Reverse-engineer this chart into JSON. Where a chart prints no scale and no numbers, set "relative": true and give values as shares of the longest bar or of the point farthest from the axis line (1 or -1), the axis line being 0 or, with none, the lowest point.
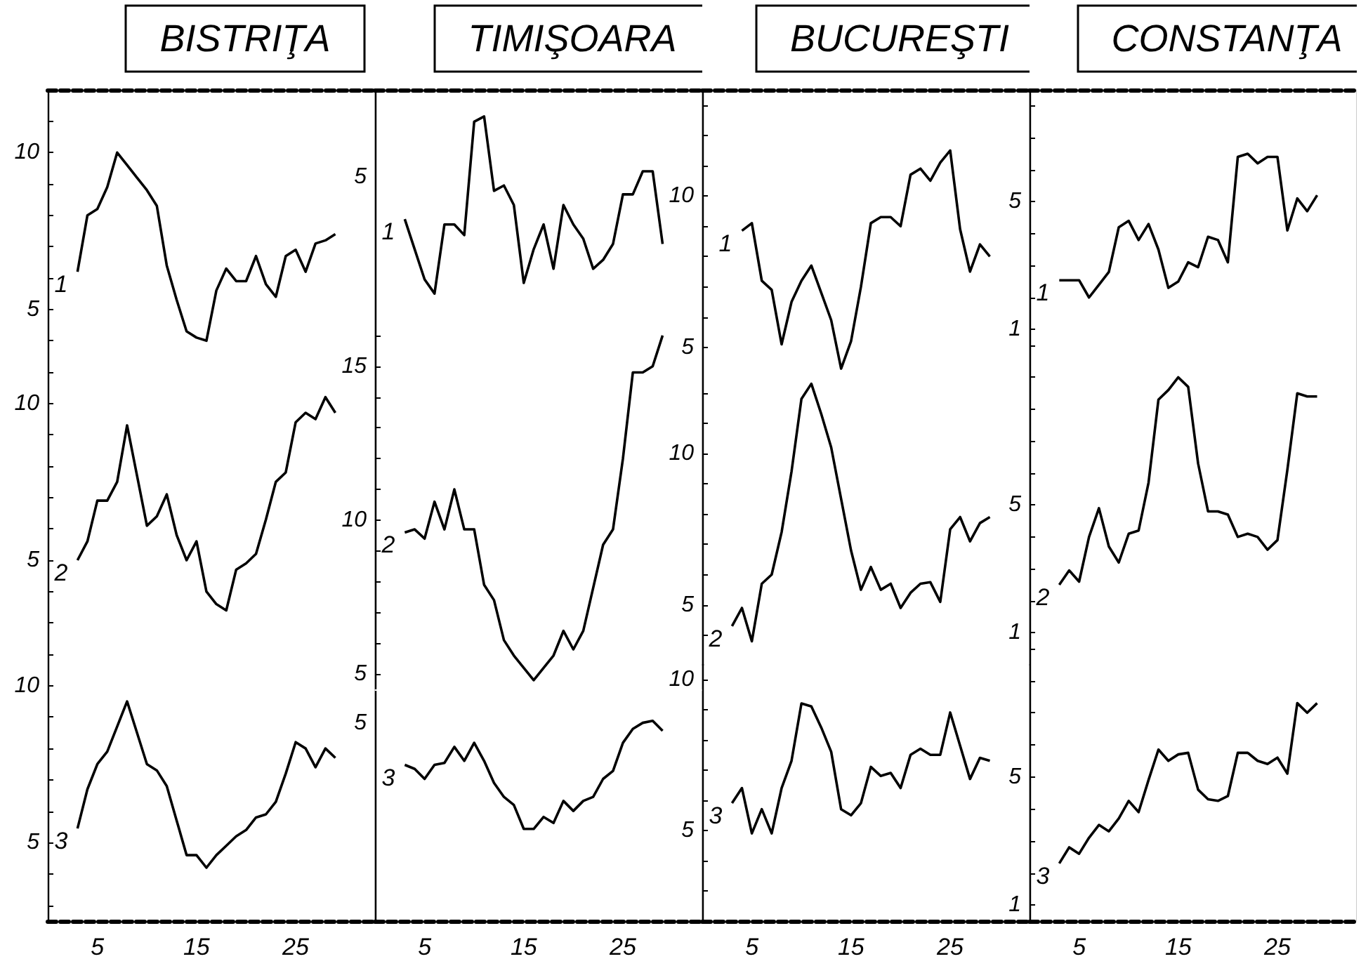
{
  "chart_data": [
    {
      "type": "line",
      "title": "BISTRIŢA",
      "tick_labels": "y",
      "x": [
        3,
        4,
        5,
        6,
        7,
        8,
        9,
        10,
        11,
        12,
        13,
        14,
        15,
        16,
        17,
        18,
        19,
        20,
        21,
        22,
        23,
        24,
        25,
        26,
        27,
        28,
        29
      ],
      "xlim": [
        0,
        33
      ],
      "xticks": [
        5,
        15,
        25
      ],
      "ylim": [
        3,
        12
      ],
      "yticks": [
        {
          "value": 3,
          "label": null
        },
        {
          "value": 4,
          "label": null
        },
        5,
        {
          "value": 6,
          "label": null
        },
        {
          "value": 7,
          "label": null
        },
        {
          "value": 8,
          "label": null
        },
        {
          "value": 9,
          "label": null
        },
        10,
        {
          "value": 11,
          "label": null
        },
        {
          "value": 12,
          "label": null
        }
      ],
      "series": [
        {
          "name": "1",
          "color": "#000000",
          "values": [
            6.2,
            8.0,
            8.2,
            8.9,
            10.0,
            9.6,
            9.2,
            8.8,
            8.3,
            6.4,
            5.3,
            4.3,
            4.1,
            4.0,
            5.6,
            6.3,
            5.9,
            5.9,
            6.7,
            5.8,
            5.4,
            6.7,
            6.9,
            6.2,
            7.1,
            7.2,
            7.4
          ]
        }
      ]
    },
    {
      "type": "line",
      "tick_labels": "y",
      "x": [
        3,
        4,
        5,
        6,
        7,
        8,
        9,
        10,
        11,
        12,
        13,
        14,
        15,
        16,
        17,
        18,
        19,
        20,
        21,
        22,
        23,
        24,
        25,
        26,
        27,
        28,
        29
      ],
      "xlim": [
        0,
        33
      ],
      "xticks": [
        5,
        15,
        25
      ],
      "ylim": [
        2,
        11
      ],
      "yticks": [
        {
          "value": 2,
          "label": null
        },
        {
          "value": 3,
          "label": null
        },
        {
          "value": 4,
          "label": null
        },
        5,
        {
          "value": 6,
          "label": null
        },
        {
          "value": 7,
          "label": null
        },
        {
          "value": 8,
          "label": null
        },
        {
          "value": 9,
          "label": null
        },
        10,
        {
          "value": 11,
          "label": null
        }
      ],
      "series": [
        {
          "name": "2",
          "color": "#000000",
          "values": [
            5.0,
            5.6,
            6.9,
            6.9,
            7.5,
            9.3,
            7.7,
            6.1,
            6.4,
            7.1,
            5.8,
            5.0,
            5.6,
            4.0,
            3.6,
            3.4,
            4.7,
            4.9,
            5.2,
            6.3,
            7.5,
            7.8,
            9.4,
            9.7,
            9.5,
            10.2,
            9.7
          ]
        }
      ]
    },
    {
      "type": "line",
      "x": [
        3,
        4,
        5,
        6,
        7,
        8,
        9,
        10,
        11,
        12,
        13,
        14,
        15,
        16,
        17,
        18,
        19,
        20,
        21,
        22,
        23,
        24,
        25,
        26,
        27,
        28,
        29
      ],
      "xlim": [
        0,
        33
      ],
      "xticks": [
        5,
        15,
        25
      ],
      "ylim": [
        2.5,
        11
      ],
      "yticks": [
        {
          "value": 3,
          "label": null
        },
        {
          "value": 4,
          "label": null
        },
        5,
        {
          "value": 6,
          "label": null
        },
        {
          "value": 7,
          "label": null
        },
        {
          "value": 8,
          "label": null
        },
        {
          "value": 9,
          "label": null
        },
        10,
        {
          "value": 11,
          "label": null
        }
      ],
      "series": [
        {
          "name": "3",
          "color": "#000000",
          "values": [
            5.45,
            6.7,
            7.5,
            7.9,
            8.7,
            9.5,
            8.5,
            7.5,
            7.3,
            6.8,
            5.7,
            4.6,
            4.6,
            4.2,
            4.6,
            4.9,
            5.2,
            5.4,
            5.8,
            5.9,
            6.3,
            7.2,
            8.2,
            8.0,
            7.4,
            8.0,
            7.7
          ]
        }
      ]
    },
    {
      "type": "line",
      "title": "TIMIŞOARA",
      "tick_labels": "y",
      "relative": true,
      "annotations": [
        "5"
      ],
      "x": [
        3,
        4,
        5,
        6,
        7,
        8,
        9,
        10,
        11,
        12,
        13,
        14,
        15,
        16,
        17,
        18,
        19,
        20,
        21,
        22,
        23,
        24,
        25,
        26,
        27,
        28,
        29
      ],
      "xlim": [
        0,
        33
      ],
      "xticks": [
        5,
        15,
        25
      ],
      "series": [
        {
          "name": "1",
          "color": "#000000",
          "values": [
            0.42,
            0.25,
            0.08,
            0,
            0.39,
            0.39,
            0.33,
            0.97,
            1,
            0.58,
            0.61,
            0.5,
            0.06,
            0.25,
            0.39,
            0.14,
            0.5,
            0.39,
            0.31,
            0.14,
            0.19,
            0.28,
            0.56,
            0.56,
            0.69,
            0.69,
            0.28
          ]
        }
      ]
    },
    {
      "type": "line",
      "tick_labels": "y",
      "x": [
        3,
        4,
        5,
        6,
        7,
        8,
        9,
        10,
        11,
        12,
        13,
        14,
        15,
        16,
        17,
        18,
        19,
        20,
        21,
        22,
        23,
        24,
        25,
        26,
        27,
        28,
        29
      ],
      "xlim": [
        0,
        33
      ],
      "xticks": [
        5,
        15,
        25
      ],
      "ylim": [
        4.5,
        16.5
      ],
      "yticks": [
        5,
        {
          "value": 6,
          "label": null
        },
        {
          "value": 7,
          "label": null
        },
        {
          "value": 8,
          "label": null
        },
        {
          "value": 9,
          "label": null
        },
        10,
        {
          "value": 11,
          "label": null
        },
        {
          "value": 12,
          "label": null
        },
        {
          "value": 13,
          "label": null
        },
        {
          "value": 14,
          "label": null
        },
        15,
        {
          "value": 16,
          "label": null
        }
      ],
      "series": [
        {
          "name": "2",
          "color": "#000000",
          "values": [
            9.6,
            9.7,
            9.4,
            10.6,
            9.7,
            11.0,
            9.7,
            9.7,
            7.9,
            7.4,
            6.1,
            5.6,
            5.2,
            4.8,
            5.2,
            5.6,
            6.4,
            5.8,
            6.4,
            7.8,
            9.2,
            9.7,
            12.0,
            14.8,
            14.8,
            15.0,
            16.0
          ]
        }
      ]
    },
    {
      "type": "line",
      "relative": true,
      "annotations": [
        "5"
      ],
      "x": [
        3,
        4,
        5,
        6,
        7,
        8,
        9,
        10,
        11,
        12,
        13,
        14,
        15,
        16,
        17,
        18,
        19,
        20,
        21,
        22,
        23,
        24,
        25,
        26,
        27,
        28,
        29
      ],
      "xlim": [
        0,
        33
      ],
      "xticks": [
        5,
        15,
        25
      ],
      "series": [
        {
          "name": "3",
          "color": "#000000",
          "values": [
            0.78,
            0.76,
            0.71,
            0.78,
            0.79,
            0.87,
            0.8,
            0.89,
            0.8,
            0.69,
            0.62,
            0.58,
            0.46,
            0.46,
            0.52,
            0.49,
            0.6,
            0.55,
            0.6,
            0.62,
            0.71,
            0.75,
            0.89,
            0.96,
            0.99,
            1,
            0.95
          ]
        }
      ]
    },
    {
      "type": "line",
      "title": "BUCUREŞTI",
      "tick_labels": "y",
      "x": [
        4,
        5,
        6,
        7,
        8,
        9,
        10,
        11,
        12,
        13,
        14,
        15,
        16,
        17,
        18,
        19,
        20,
        21,
        22,
        23,
        24,
        25,
        26,
        27,
        28,
        29
      ],
      "xlim": [
        0,
        33
      ],
      "xticks": [
        5,
        15,
        25
      ],
      "ylim": [
        4,
        13.5
      ],
      "yticks": [
        {
          "value": 4,
          "label": null
        },
        5,
        {
          "value": 6,
          "label": null
        },
        {
          "value": 7,
          "label": null
        },
        {
          "value": 8,
          "label": null
        },
        {
          "value": 9,
          "label": null
        },
        10,
        {
          "value": 11,
          "label": null
        },
        {
          "value": 12,
          "label": null
        },
        {
          "value": 13,
          "label": null
        }
      ],
      "series": [
        {
          "name": "1",
          "color": "#000000",
          "values": [
            8.85,
            9.1,
            7.2,
            6.9,
            5.1,
            6.5,
            7.2,
            7.7,
            6.8,
            5.9,
            4.3,
            5.2,
            7.0,
            9.1,
            9.3,
            9.3,
            9.0,
            10.7,
            10.9,
            10.5,
            11.1,
            11.5,
            8.9,
            7.5,
            8.4,
            8.0
          ]
        }
      ]
    },
    {
      "type": "line",
      "tick_labels": "y",
      "x": [
        3,
        4,
        5,
        6,
        7,
        8,
        9,
        10,
        11,
        12,
        13,
        14,
        15,
        16,
        17,
        18,
        19,
        20,
        21,
        22,
        23,
        24,
        25,
        26,
        27,
        28,
        29
      ],
      "xlim": [
        0,
        33
      ],
      "xticks": [
        5,
        15,
        25
      ],
      "ylim": [
        3,
        12.5
      ],
      "yticks": [
        {
          "value": 3,
          "label": null
        },
        {
          "value": 4,
          "label": null
        },
        5,
        {
          "value": 6,
          "label": null
        },
        {
          "value": 7,
          "label": null
        },
        {
          "value": 8,
          "label": null
        },
        {
          "value": 9,
          "label": null
        },
        10,
        {
          "value": 11,
          "label": null
        },
        {
          "value": 12,
          "label": null
        }
      ],
      "series": [
        {
          "name": "2",
          "color": "#000000",
          "values": [
            4.3,
            4.9,
            3.8,
            5.7,
            6.0,
            7.4,
            9.4,
            11.8,
            12.3,
            11.3,
            10.2,
            8.5,
            6.8,
            5.5,
            6.25,
            5.5,
            5.7,
            4.9,
            5.4,
            5.7,
            5.75,
            5.1,
            7.5,
            7.9,
            7.1,
            7.7,
            7.9
          ]
        }
      ]
    },
    {
      "type": "line",
      "x": [
        3,
        4,
        5,
        6,
        7,
        8,
        9,
        10,
        11,
        12,
        13,
        14,
        15,
        16,
        17,
        18,
        19,
        20,
        21,
        22,
        23,
        24,
        25,
        26,
        27,
        28,
        29
      ],
      "xlim": [
        0,
        33
      ],
      "xticks": [
        5,
        15,
        25
      ],
      "ylim": [
        2,
        10.5
      ],
      "yticks": [
        {
          "value": 2,
          "label": null
        },
        {
          "value": 3,
          "label": null
        },
        {
          "value": 4,
          "label": null
        },
        5,
        {
          "value": 6,
          "label": null
        },
        {
          "value": 7,
          "label": null
        },
        {
          "value": 8,
          "label": null
        },
        {
          "value": 9,
          "label": null
        },
        10
      ],
      "series": [
        {
          "name": "3",
          "color": "#000000",
          "values": [
            5.9,
            6.4,
            4.9,
            5.7,
            4.9,
            6.4,
            7.3,
            9.2,
            9.1,
            8.4,
            7.6,
            5.7,
            5.5,
            5.9,
            7.1,
            6.8,
            6.9,
            6.4,
            7.5,
            7.7,
            7.5,
            7.5,
            8.9,
            7.8,
            6.7,
            7.4,
            7.3
          ]
        }
      ]
    },
    {
      "type": "line",
      "title": "CONSTANŢA",
      "tick_labels": "y",
      "x": [
        3,
        4,
        5,
        6,
        7,
        8,
        9,
        10,
        11,
        12,
        13,
        14,
        15,
        16,
        17,
        18,
        19,
        20,
        21,
        22,
        23,
        24,
        25,
        26,
        27,
        28,
        29
      ],
      "xlim": [
        0,
        33
      ],
      "xticks": [
        5,
        15,
        25
      ],
      "ylim": [
        0.5,
        8.5
      ],
      "yticks": [
        1,
        {
          "value": 2,
          "label": null
        },
        {
          "value": 3,
          "label": null
        },
        {
          "value": 4,
          "label": null
        },
        5,
        {
          "value": 6,
          "label": null
        },
        {
          "value": 7,
          "label": null
        },
        {
          "value": 8,
          "label": null
        }
      ],
      "series": [
        {
          "name": "1",
          "color": "#000000",
          "values": [
            2.54,
            2.54,
            2.54,
            2.0,
            2.4,
            2.8,
            4.2,
            4.4,
            3.8,
            4.3,
            3.5,
            2.3,
            2.5,
            3.1,
            2.95,
            3.9,
            3.8,
            3.1,
            6.4,
            6.5,
            6.2,
            6.4,
            6.4,
            4.1,
            5.1,
            4.7,
            5.2
          ]
        }
      ]
    },
    {
      "type": "line",
      "tick_labels": "y",
      "x": [
        3,
        4,
        5,
        6,
        7,
        8,
        9,
        10,
        11,
        12,
        13,
        14,
        15,
        16,
        17,
        18,
        19,
        20,
        21,
        22,
        23,
        24,
        25,
        26,
        27,
        28,
        29
      ],
      "xlim": [
        0,
        33
      ],
      "xticks": [
        5,
        15,
        25
      ],
      "ylim": [
        0.5,
        10
      ],
      "yticks": [
        1,
        {
          "value": 2,
          "label": null
        },
        {
          "value": 3,
          "label": null
        },
        {
          "value": 4,
          "label": null
        },
        5,
        {
          "value": 6,
          "label": null
        },
        {
          "value": 7,
          "label": null
        },
        {
          "value": 8,
          "label": null
        },
        {
          "value": 9,
          "label": null
        },
        {
          "value": 10,
          "label": null
        }
      ],
      "series": [
        {
          "name": "2",
          "color": "#000000",
          "values": [
            2.5,
            2.95,
            2.6,
            4.0,
            4.9,
            3.7,
            3.2,
            4.1,
            4.2,
            5.7,
            8.3,
            8.6,
            9.0,
            8.7,
            6.3,
            4.8,
            4.8,
            4.7,
            4.0,
            4.1,
            4.0,
            3.6,
            3.9,
            6.1,
            8.5,
            8.4,
            8.4
          ]
        }
      ]
    },
    {
      "type": "line",
      "x": [
        3,
        4,
        5,
        6,
        7,
        8,
        9,
        10,
        11,
        12,
        13,
        14,
        15,
        16,
        17,
        18,
        19,
        20,
        21,
        22,
        23,
        24,
        25,
        26,
        27,
        28,
        29
      ],
      "xlim": [
        0,
        33
      ],
      "xticks": [
        5,
        15,
        25
      ],
      "ylim": [
        0.5,
        9
      ],
      "yticks": [
        1,
        {
          "value": 2,
          "label": null
        },
        {
          "value": 3,
          "label": null
        },
        {
          "value": 4,
          "label": null
        },
        5,
        {
          "value": 6,
          "label": null
        },
        {
          "value": 7,
          "label": null
        },
        {
          "value": 8,
          "label": null
        },
        {
          "value": 9,
          "label": null
        }
      ],
      "series": [
        {
          "name": "3",
          "color": "#000000",
          "values": [
            2.3,
            2.8,
            2.6,
            3.1,
            3.5,
            3.3,
            3.7,
            4.25,
            3.9,
            4.9,
            5.85,
            5.5,
            5.7,
            5.75,
            4.6,
            4.3,
            4.25,
            4.4,
            5.75,
            5.75,
            5.5,
            5.4,
            5.6,
            5.1,
            7.3,
            7.0,
            7.3
          ]
        }
      ]
    }
  ]
}
